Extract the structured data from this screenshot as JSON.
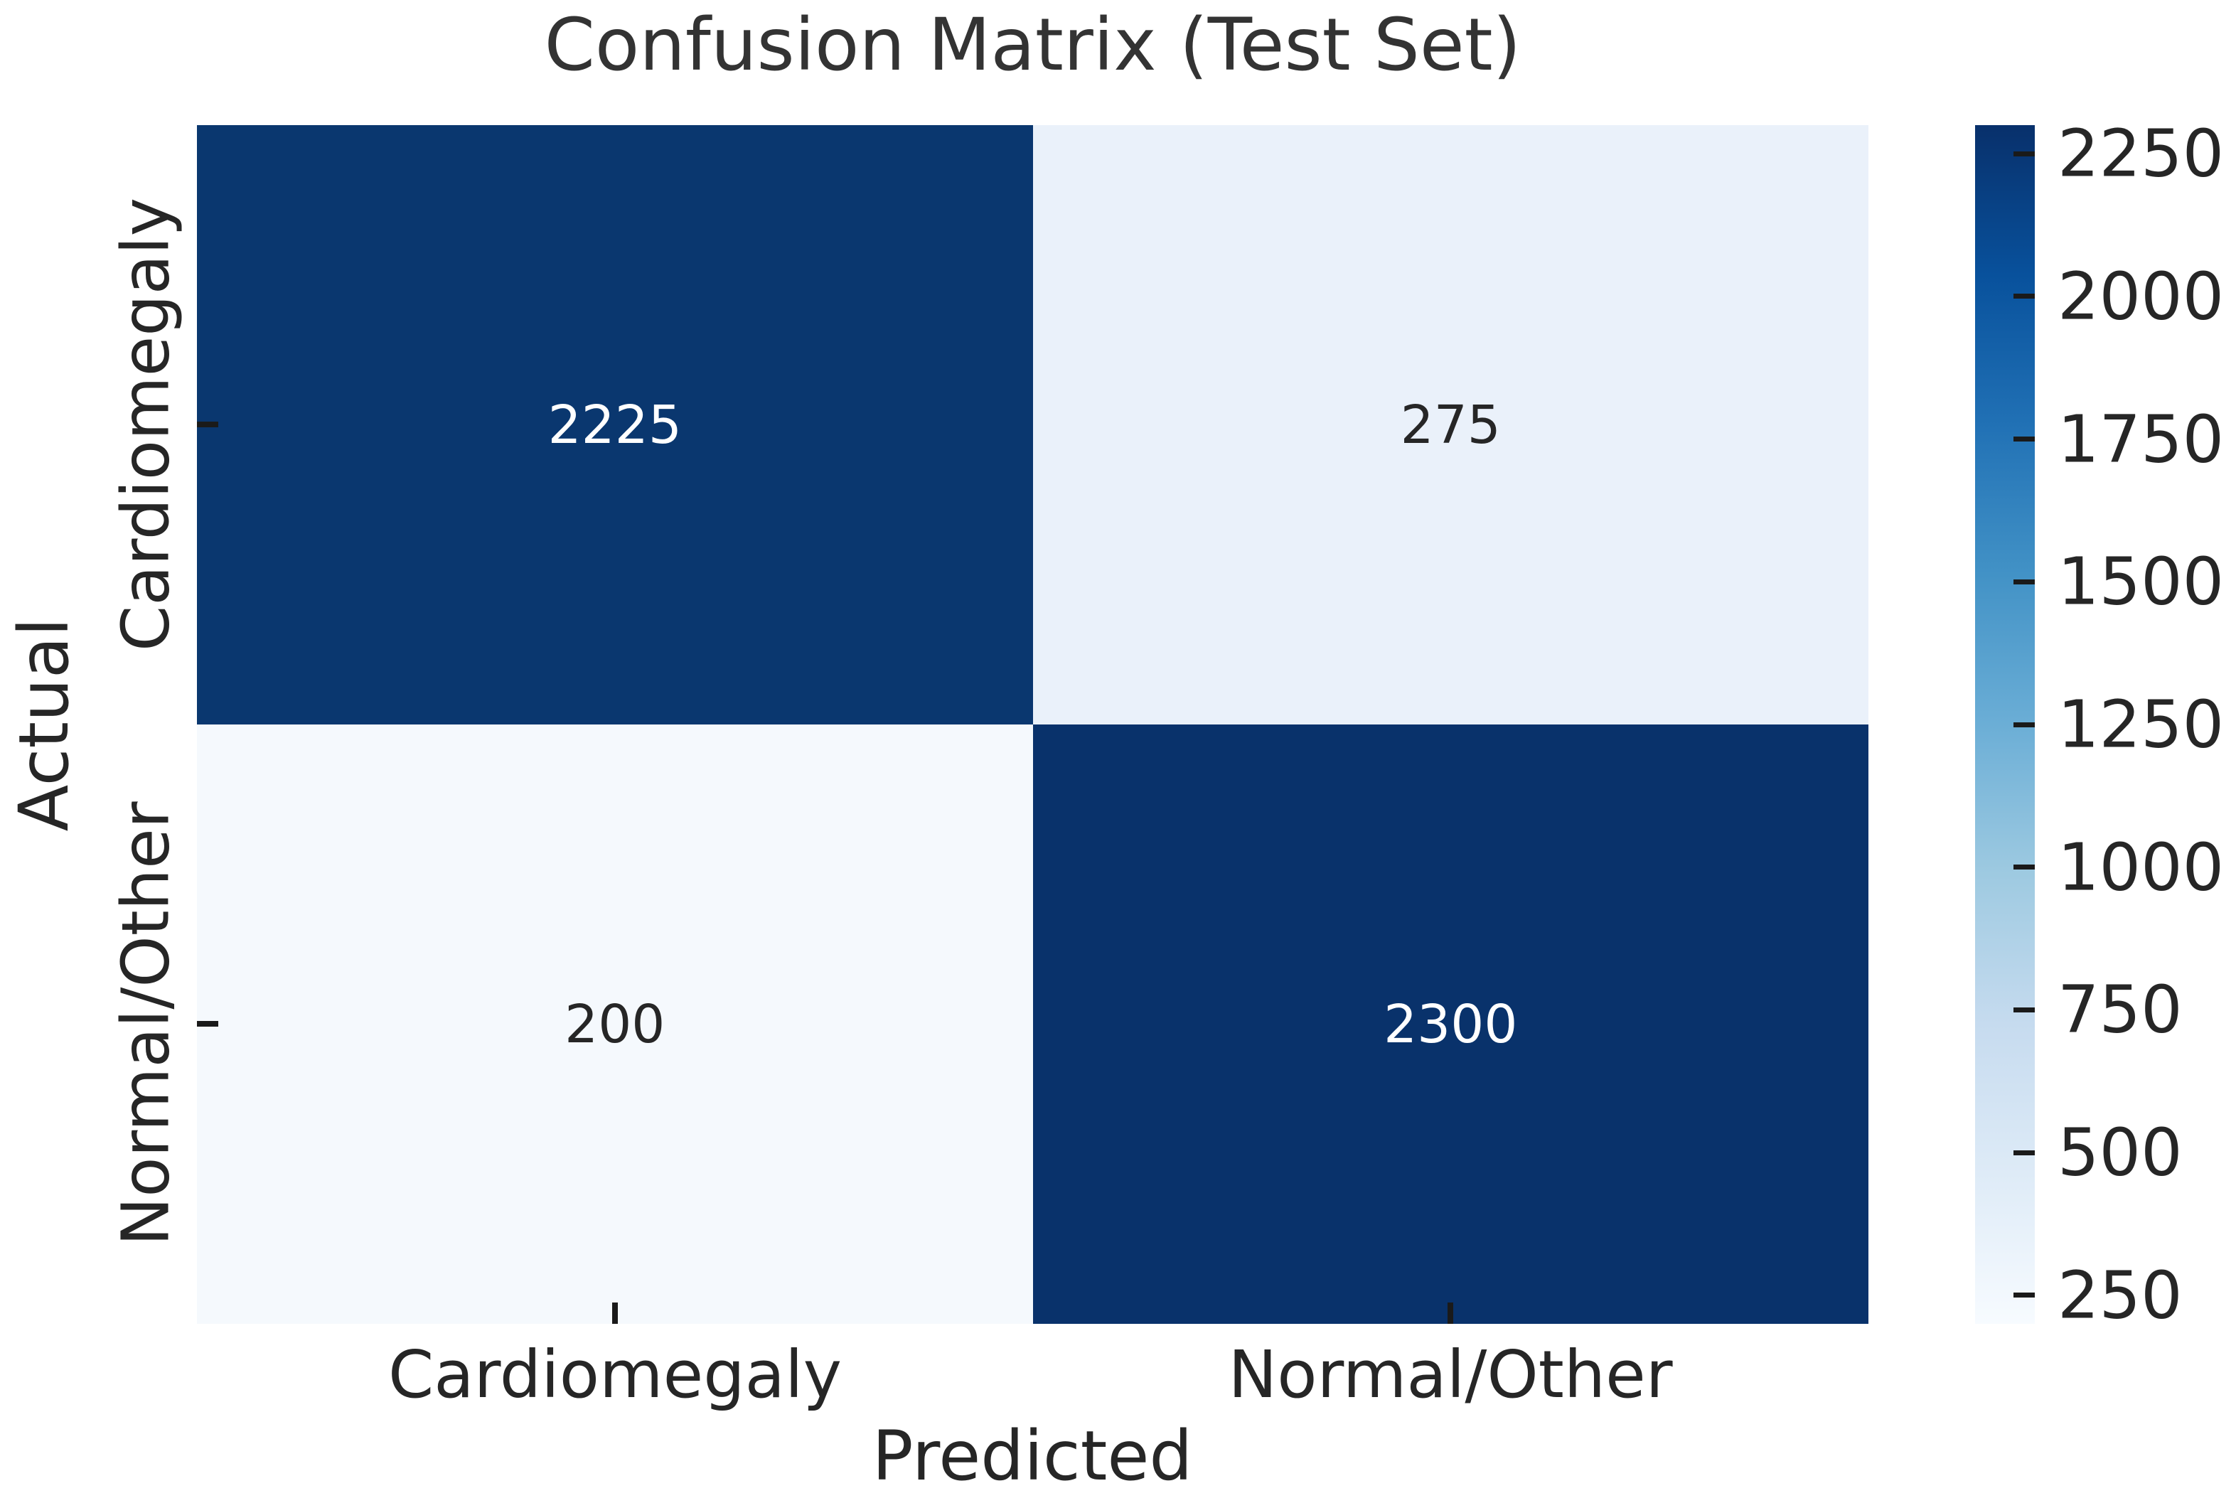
{
  "chart_data": {
    "type": "heatmap",
    "title": "Confusion Matrix (Test Set)",
    "xlabel": "Predicted",
    "ylabel": "Actual",
    "x_categories": [
      "Cardiomegaly",
      "Normal/Other"
    ],
    "y_categories": [
      "Cardiomegaly",
      "Normal/Other"
    ],
    "matrix": [
      [
        2225,
        275
      ],
      [
        200,
        2300
      ]
    ],
    "colormap": "Blues",
    "legend_position": "right-colorbar",
    "grid": false,
    "colorbar": {
      "vmin": 200,
      "vmax": 2300,
      "ticks": [
        250,
        500,
        750,
        1000,
        1250,
        1500,
        1750,
        2000,
        2250
      ]
    }
  },
  "cells": [
    {
      "value": "2225",
      "bg": "#0a376f",
      "fg": "#ffffff"
    },
    {
      "value": "275",
      "bg": "#eaf1fa",
      "fg": "#262626"
    },
    {
      "value": "200",
      "bg": "#f5f9fd",
      "fg": "#262626"
    },
    {
      "value": "2300",
      "bg": "#09326b",
      "fg": "#ffffff"
    }
  ],
  "colors": {
    "dark_cell": "#09326b",
    "light_cell": "#f5f9fd",
    "text": "#262626",
    "tick": "#1a1a1a",
    "title": "#333333"
  }
}
